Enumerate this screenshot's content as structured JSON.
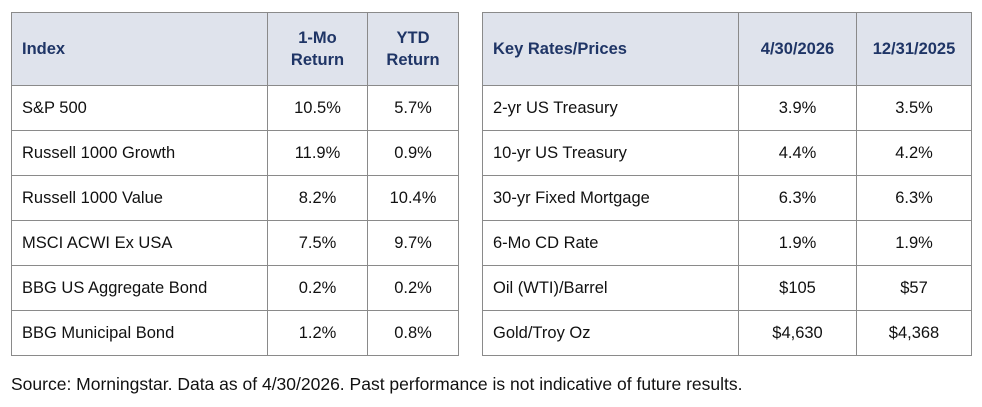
{
  "index_table": {
    "headers": [
      "Index",
      "1-Mo Return",
      "YTD Return"
    ],
    "rows": [
      [
        "S&P 500",
        "10.5%",
        "5.7%"
      ],
      [
        "Russell 1000 Growth",
        "11.9%",
        "0.9%"
      ],
      [
        "Russell 1000 Value",
        "8.2%",
        "10.4%"
      ],
      [
        "MSCI ACWI Ex USA",
        "7.5%",
        "9.7%"
      ],
      [
        "BBG US Aggregate Bond",
        "0.2%",
        "0.2%"
      ],
      [
        "BBG Municipal Bond",
        "1.2%",
        "0.8%"
      ]
    ]
  },
  "rates_table": {
    "headers": [
      "Key Rates/Prices",
      "4/30/2026",
      "12/31/2025"
    ],
    "rows": [
      [
        "2-yr US Treasury",
        "3.9%",
        "3.5%"
      ],
      [
        "10-yr US Treasury",
        "4.4%",
        "4.2%"
      ],
      [
        "30-yr Fixed Mortgage",
        "6.3%",
        "6.3%"
      ],
      [
        "6-Mo CD Rate",
        "1.9%",
        "1.9%"
      ],
      [
        "Oil (WTI)/Barrel",
        "$105",
        "$57"
      ],
      [
        "Gold/Troy Oz",
        "$4,630",
        "$4,368"
      ]
    ]
  },
  "footnote": "Source: Morningstar. Data as of 4/30/2026. Past performance is not indicative of future results.",
  "colors": {
    "header_background": "#dfe3ec",
    "header_text": "#1f3566",
    "border": "#8a8a8a",
    "body_text": "#111111"
  }
}
